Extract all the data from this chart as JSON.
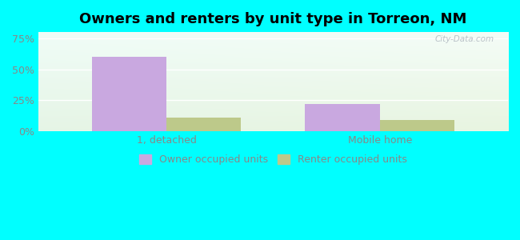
{
  "title": "Owners and renters by unit type in Torreon, NM",
  "categories": [
    "1, detached",
    "Mobile home"
  ],
  "owner_values": [
    60,
    22
  ],
  "renter_values": [
    11,
    9
  ],
  "owner_color": "#c9a8e0",
  "renter_color": "#bdc98a",
  "yticks": [
    0,
    25,
    50,
    75
  ],
  "ytick_labels": [
    "0%",
    "25%",
    "50%",
    "75%"
  ],
  "ylim": [
    0,
    80
  ],
  "bar_width": 0.35,
  "legend_labels": [
    "Owner occupied units",
    "Renter occupied units"
  ],
  "background_outer": "#00ffff",
  "watermark": "City-Data.com",
  "title_fontsize": 13,
  "axis_label_fontsize": 9,
  "legend_fontsize": 9,
  "xlim": [
    -0.6,
    1.6
  ]
}
